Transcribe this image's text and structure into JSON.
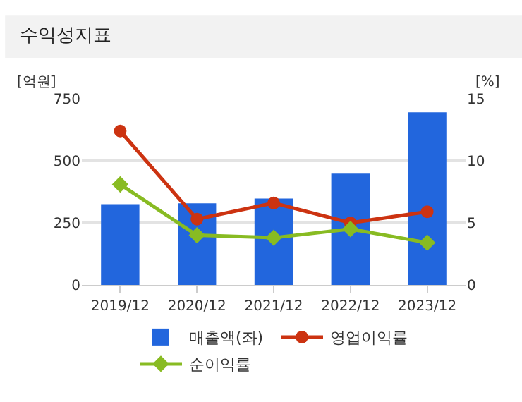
{
  "chart_data": {
    "type": "bar",
    "title": "수익성지표",
    "ylabel": "[억원]",
    "y2label": "[%]",
    "categories": [
      "2019/12",
      "2020/12",
      "2021/12",
      "2022/12",
      "2023/12"
    ],
    "series": [
      {
        "name": "매출액(좌)",
        "color": "#2266dd",
        "values": [
          325,
          329,
          348,
          448,
          695
        ]
      },
      {
        "name": "영업이익률",
        "type": "line",
        "axis": "y2",
        "marker": "circle",
        "color": "#cc3311",
        "values": [
          12.4,
          5.3,
          6.6,
          5.0,
          5.9
        ]
      },
      {
        "name": "순이익률",
        "type": "line",
        "axis": "y2",
        "marker": "diamond",
        "color": "#88bb22",
        "values": [
          8.1,
          4.0,
          3.8,
          4.5,
          3.4
        ]
      }
    ],
    "ylim": [
      0,
      750
    ],
    "yticks": [
      0,
      250,
      500,
      750
    ],
    "y2lim": [
      0,
      15
    ],
    "y2ticks": [
      0,
      5,
      10,
      15
    ],
    "grid": "y",
    "legend": "bottom"
  }
}
